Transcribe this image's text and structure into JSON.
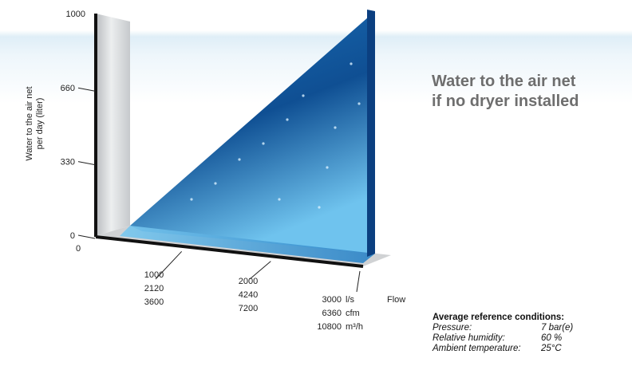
{
  "headline": {
    "line1": "Water to the air net",
    "line2": "if no dryer installed"
  },
  "conditions": {
    "title": "Average reference conditions:",
    "rows": [
      {
        "label": "Pressure:",
        "value": "7 bar(e)"
      },
      {
        "label": "Relative humidity:",
        "value": "60 %"
      },
      {
        "label": "Ambient temperature:",
        "value": "25°C"
      }
    ]
  },
  "colors": {
    "water_dark": "#0a3d78",
    "water_mid": "#1a72b8",
    "water_light": "#5db4e6",
    "headline": "#6e6e6e",
    "band": "#dfeef7"
  },
  "chart_data": {
    "type": "area",
    "ylabel": [
      "Water to the air net",
      "per day (liter)"
    ],
    "xlabel": "Flow",
    "ylim": [
      0,
      1000
    ],
    "xlim": [
      0,
      3000
    ],
    "y_ticks": [
      {
        "value": 1000,
        "label": "1000"
      },
      {
        "value": 660,
        "label": "660"
      },
      {
        "value": 330,
        "label": "330"
      },
      {
        "value": 0,
        "label": "0"
      }
    ],
    "x_origin_label": "0",
    "x_ticks": [
      {
        "value": 1000,
        "lines": [
          "1000",
          "2120",
          "3600"
        ]
      },
      {
        "value": 2000,
        "lines": [
          "2000",
          "4240",
          "7200"
        ]
      },
      {
        "value": 3000,
        "lines": [
          "3000",
          "6360",
          "10800"
        ]
      }
    ],
    "x_units": [
      "l/s",
      "cfm",
      "m³/h"
    ],
    "series": [
      {
        "x": [
          0,
          3000
        ],
        "y": [
          0,
          1000
        ]
      }
    ]
  }
}
